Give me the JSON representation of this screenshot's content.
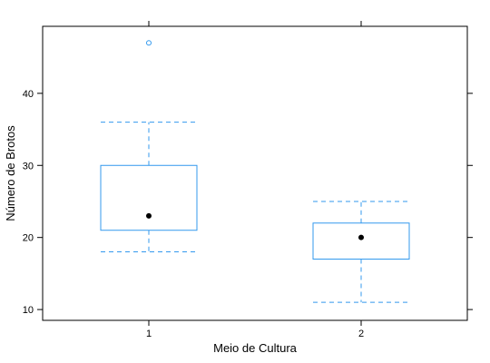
{
  "chart_data": {
    "type": "box",
    "xlabel": "Meio de Cultura",
    "ylabel": "Número de Brotos",
    "categories": [
      "1",
      "2"
    ],
    "ylim": [
      8.5,
      49.3
    ],
    "yticks": [
      10,
      20,
      30,
      40
    ],
    "boxes": [
      {
        "category": "1",
        "whisker_low": 18,
        "q1": 21,
        "median": 23,
        "q3": 30,
        "whisker_high": 36,
        "outliers": [
          47
        ]
      },
      {
        "category": "2",
        "whisker_low": 11,
        "q1": 17,
        "median": 20,
        "q3": 22,
        "whisker_high": 25,
        "outliers": []
      }
    ],
    "grid": false,
    "colors": {
      "box": "#3399ee",
      "median": "#000000",
      "frame": "#000000"
    }
  }
}
